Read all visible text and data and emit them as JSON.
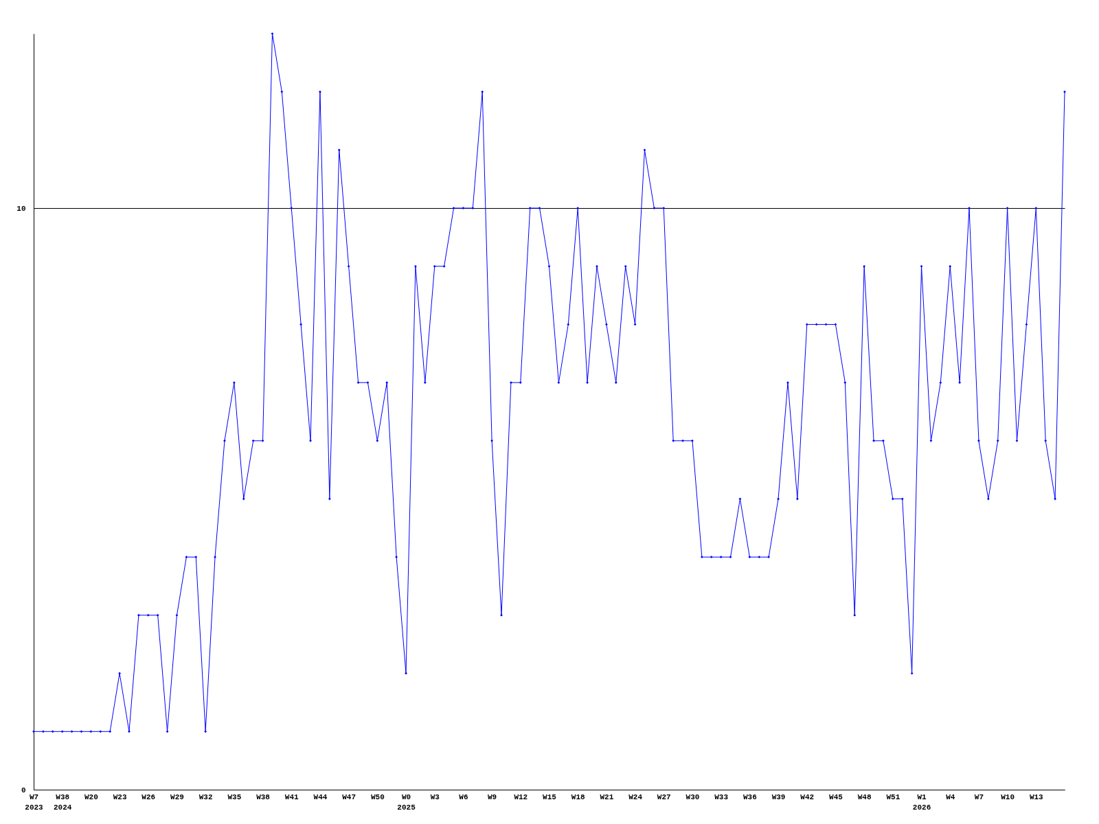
{
  "chart_data": {
    "type": "line",
    "categories": [
      "W7\n2023",
      null,
      null,
      "W38\n2024",
      null,
      null,
      "W20",
      null,
      null,
      "W23",
      null,
      null,
      "W26",
      null,
      null,
      "W29",
      null,
      null,
      "W32",
      null,
      null,
      "W35",
      null,
      null,
      "W38",
      null,
      null,
      "W41",
      null,
      null,
      "W44",
      null,
      null,
      "W47",
      null,
      null,
      "W50",
      null,
      null,
      "W0\n2025",
      null,
      null,
      "W3",
      null,
      null,
      "W6",
      null,
      null,
      "W9",
      null,
      null,
      "W12",
      null,
      null,
      "W15",
      null,
      null,
      "W18",
      null,
      null,
      "W21",
      null,
      null,
      "W24",
      null,
      null,
      "W27",
      null,
      null,
      "W30",
      null,
      null,
      "W33",
      null,
      null,
      "W36",
      null,
      null,
      "W39",
      null,
      null,
      "W42",
      null,
      null,
      "W45",
      null,
      null,
      "W48",
      null,
      null,
      "W51",
      null,
      null,
      "W1\n2026",
      null,
      null,
      "W4",
      null,
      null,
      "W7",
      null,
      null,
      "W10",
      null,
      null,
      "W13",
      null,
      null,
      null
    ],
    "series": [
      {
        "color": "#0000ff",
        "values": [
          1,
          1,
          1,
          1,
          1,
          1,
          1,
          1,
          1,
          2,
          1,
          3,
          3,
          3,
          1,
          3,
          4,
          4,
          1,
          4,
          6,
          7,
          5,
          6,
          6,
          13,
          12,
          10,
          8,
          6,
          12,
          5,
          11,
          9,
          7,
          7,
          6,
          7,
          4,
          2,
          9,
          7,
          9,
          9,
          10,
          10,
          10,
          12,
          6,
          3,
          7,
          7,
          10,
          10,
          9,
          7,
          8,
          10,
          7,
          9,
          8,
          7,
          9,
          8,
          11,
          10,
          10,
          6,
          6,
          6,
          4,
          4,
          4,
          4,
          5,
          4,
          4,
          4,
          5,
          7,
          5,
          8,
          8,
          8,
          8,
          7,
          3,
          9,
          6,
          6,
          5,
          5,
          2,
          9,
          6,
          7,
          9,
          7,
          10,
          6,
          5,
          6,
          10,
          6,
          8,
          10,
          6,
          5,
          12
        ]
      }
    ],
    "ylim": [
      0,
      13
    ],
    "yticks": [
      0,
      10
    ],
    "grid": "y",
    "marker": "diamond",
    "line_style": "solid"
  }
}
